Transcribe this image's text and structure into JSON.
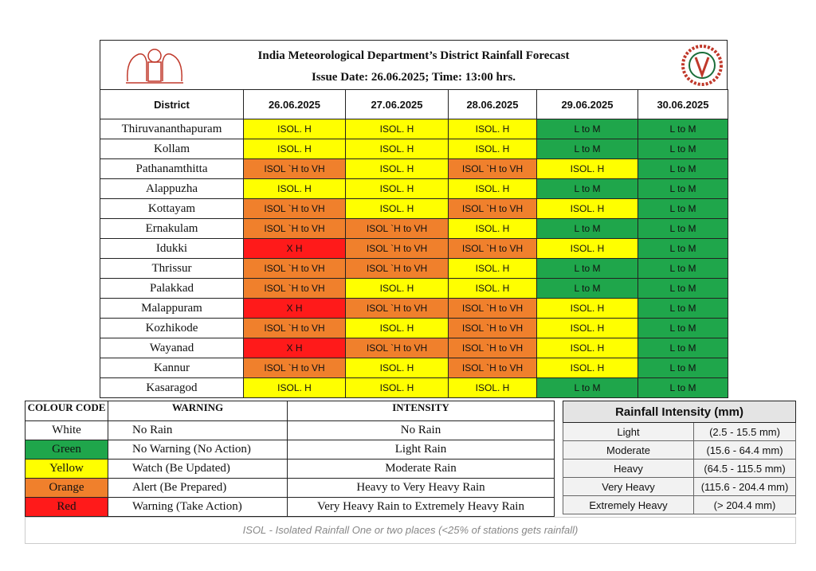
{
  "header": {
    "title": "India Meteorological Department’s District Rainfall Forecast",
    "issue": "Issue Date: 26.06.2025; Time: 13:00 hrs."
  },
  "forecast": {
    "district_header": "District",
    "dates": [
      "26.06.2025",
      "27.06.2025",
      "28.06.2025",
      "29.06.2025",
      "30.06.2025"
    ],
    "rows": [
      {
        "district": "Thiruvananthapuram",
        "cells": [
          {
            "text": "ISOL. H",
            "color": "#ffff00"
          },
          {
            "text": "ISOL. H",
            "color": "#ffff00"
          },
          {
            "text": "ISOL. H",
            "color": "#ffff00"
          },
          {
            "text": "L to M",
            "color": "#1fa64b"
          },
          {
            "text": "L to M",
            "color": "#1fa64b"
          }
        ]
      },
      {
        "district": "Kollam",
        "cells": [
          {
            "text": "ISOL. H",
            "color": "#ffff00"
          },
          {
            "text": "ISOL. H",
            "color": "#ffff00"
          },
          {
            "text": "ISOL. H",
            "color": "#ffff00"
          },
          {
            "text": "L to M",
            "color": "#1fa64b"
          },
          {
            "text": "L to M",
            "color": "#1fa64b"
          }
        ]
      },
      {
        "district": "Pathanamthitta",
        "cells": [
          {
            "text": "ISOL `H to VH",
            "color": "#f0802c"
          },
          {
            "text": "ISOL. H",
            "color": "#ffff00"
          },
          {
            "text": "ISOL `H to VH",
            "color": "#f0802c"
          },
          {
            "text": "ISOL. H",
            "color": "#ffff00"
          },
          {
            "text": "L to M",
            "color": "#1fa64b"
          }
        ]
      },
      {
        "district": "Alappuzha",
        "cells": [
          {
            "text": "ISOL. H",
            "color": "#ffff00"
          },
          {
            "text": "ISOL. H",
            "color": "#ffff00"
          },
          {
            "text": "ISOL. H",
            "color": "#ffff00"
          },
          {
            "text": "L to M",
            "color": "#1fa64b"
          },
          {
            "text": "L to M",
            "color": "#1fa64b"
          }
        ]
      },
      {
        "district": "Kottayam",
        "cells": [
          {
            "text": "ISOL `H to VH",
            "color": "#f0802c"
          },
          {
            "text": "ISOL. H",
            "color": "#ffff00"
          },
          {
            "text": "ISOL `H to VH",
            "color": "#f0802c"
          },
          {
            "text": "ISOL. H",
            "color": "#ffff00"
          },
          {
            "text": "L to M",
            "color": "#1fa64b"
          }
        ]
      },
      {
        "district": "Ernakulam",
        "cells": [
          {
            "text": "ISOL `H to VH",
            "color": "#f0802c"
          },
          {
            "text": "ISOL `H to VH",
            "color": "#f0802c"
          },
          {
            "text": "ISOL. H",
            "color": "#ffff00"
          },
          {
            "text": "L to M",
            "color": "#1fa64b"
          },
          {
            "text": "L to M",
            "color": "#1fa64b"
          }
        ]
      },
      {
        "district": "Idukki",
        "cells": [
          {
            "text": "X H",
            "color": "#ff1a1a"
          },
          {
            "text": "ISOL `H to VH",
            "color": "#f0802c"
          },
          {
            "text": "ISOL `H to VH",
            "color": "#f0802c"
          },
          {
            "text": "ISOL. H",
            "color": "#ffff00"
          },
          {
            "text": "L to M",
            "color": "#1fa64b"
          }
        ]
      },
      {
        "district": "Thrissur",
        "cells": [
          {
            "text": "ISOL `H to VH",
            "color": "#f0802c"
          },
          {
            "text": "ISOL `H to VH",
            "color": "#f0802c"
          },
          {
            "text": "ISOL. H",
            "color": "#ffff00"
          },
          {
            "text": "L to M",
            "color": "#1fa64b"
          },
          {
            "text": "L to M",
            "color": "#1fa64b"
          }
        ]
      },
      {
        "district": "Palakkad",
        "cells": [
          {
            "text": "ISOL `H to VH",
            "color": "#f0802c"
          },
          {
            "text": "ISOL. H",
            "color": "#ffff00"
          },
          {
            "text": "ISOL. H",
            "color": "#ffff00"
          },
          {
            "text": "L to M",
            "color": "#1fa64b"
          },
          {
            "text": "L to M",
            "color": "#1fa64b"
          }
        ]
      },
      {
        "district": "Malappuram",
        "cells": [
          {
            "text": "X H",
            "color": "#ff1a1a"
          },
          {
            "text": "ISOL `H to VH",
            "color": "#f0802c"
          },
          {
            "text": "ISOL `H to VH",
            "color": "#f0802c"
          },
          {
            "text": "ISOL. H",
            "color": "#ffff00"
          },
          {
            "text": "L to M",
            "color": "#1fa64b"
          }
        ]
      },
      {
        "district": "Kozhikode",
        "cells": [
          {
            "text": "ISOL `H to VH",
            "color": "#f0802c"
          },
          {
            "text": "ISOL. H",
            "color": "#ffff00"
          },
          {
            "text": "ISOL `H to VH",
            "color": "#f0802c"
          },
          {
            "text": "ISOL. H",
            "color": "#ffff00"
          },
          {
            "text": "L to M",
            "color": "#1fa64b"
          }
        ]
      },
      {
        "district": "Wayanad",
        "cells": [
          {
            "text": "X H",
            "color": "#ff1a1a"
          },
          {
            "text": "ISOL `H to VH",
            "color": "#f0802c"
          },
          {
            "text": "ISOL `H to VH",
            "color": "#f0802c"
          },
          {
            "text": "ISOL. H",
            "color": "#ffff00"
          },
          {
            "text": "L to M",
            "color": "#1fa64b"
          }
        ]
      },
      {
        "district": "Kannur",
        "cells": [
          {
            "text": "ISOL `H to VH",
            "color": "#f0802c"
          },
          {
            "text": "ISOL. H",
            "color": "#ffff00"
          },
          {
            "text": "ISOL `H to VH",
            "color": "#f0802c"
          },
          {
            "text": "ISOL. H",
            "color": "#ffff00"
          },
          {
            "text": "L to M",
            "color": "#1fa64b"
          }
        ]
      },
      {
        "district": "Kasaragod",
        "cells": [
          {
            "text": "ISOL. H",
            "color": "#ffff00"
          },
          {
            "text": "ISOL. H",
            "color": "#ffff00"
          },
          {
            "text": "ISOL. H",
            "color": "#ffff00"
          },
          {
            "text": "L to M",
            "color": "#1fa64b"
          },
          {
            "text": "L to M",
            "color": "#1fa64b"
          }
        ]
      }
    ]
  },
  "legend": {
    "headers": [
      "COLOUR CODE",
      "WARNING",
      "INTENSITY"
    ],
    "rows": [
      {
        "code": "White",
        "warning": "No Rain",
        "intensity": "No Rain",
        "color": "#ffffff"
      },
      {
        "code": "Green",
        "warning": "No Warning (No Action)",
        "intensity": "Light Rain",
        "color": "#1fa64b"
      },
      {
        "code": "Yellow",
        "warning": "Watch (Be Updated)",
        "intensity": "Moderate Rain",
        "color": "#ffff00"
      },
      {
        "code": "Orange",
        "warning": "Alert (Be Prepared)",
        "intensity": "Heavy to Very Heavy Rain",
        "color": "#f0802c"
      },
      {
        "code": "Red",
        "warning": "Warning (Take Action)",
        "intensity": "Very Heavy Rain to Extremely Heavy Rain",
        "color": "#ff1a1a"
      }
    ]
  },
  "intensity": {
    "title": "Rainfall Intensity (mm)",
    "rows": [
      {
        "category": "Light",
        "range": "(2.5 - 15.5 mm)"
      },
      {
        "category": "Moderate",
        "range": "(15.6 - 64.4 mm)"
      },
      {
        "category": "Heavy",
        "range": "(64.5 - 115.5 mm)"
      },
      {
        "category": "Very Heavy",
        "range": "(115.6 - 204.4 mm)"
      },
      {
        "category": "Extremely Heavy",
        "range": "(> 204.4 mm)"
      }
    ]
  },
  "footnote": "ISOL - Isolated Rainfall One or two places (<25% of stations gets rainfall)"
}
